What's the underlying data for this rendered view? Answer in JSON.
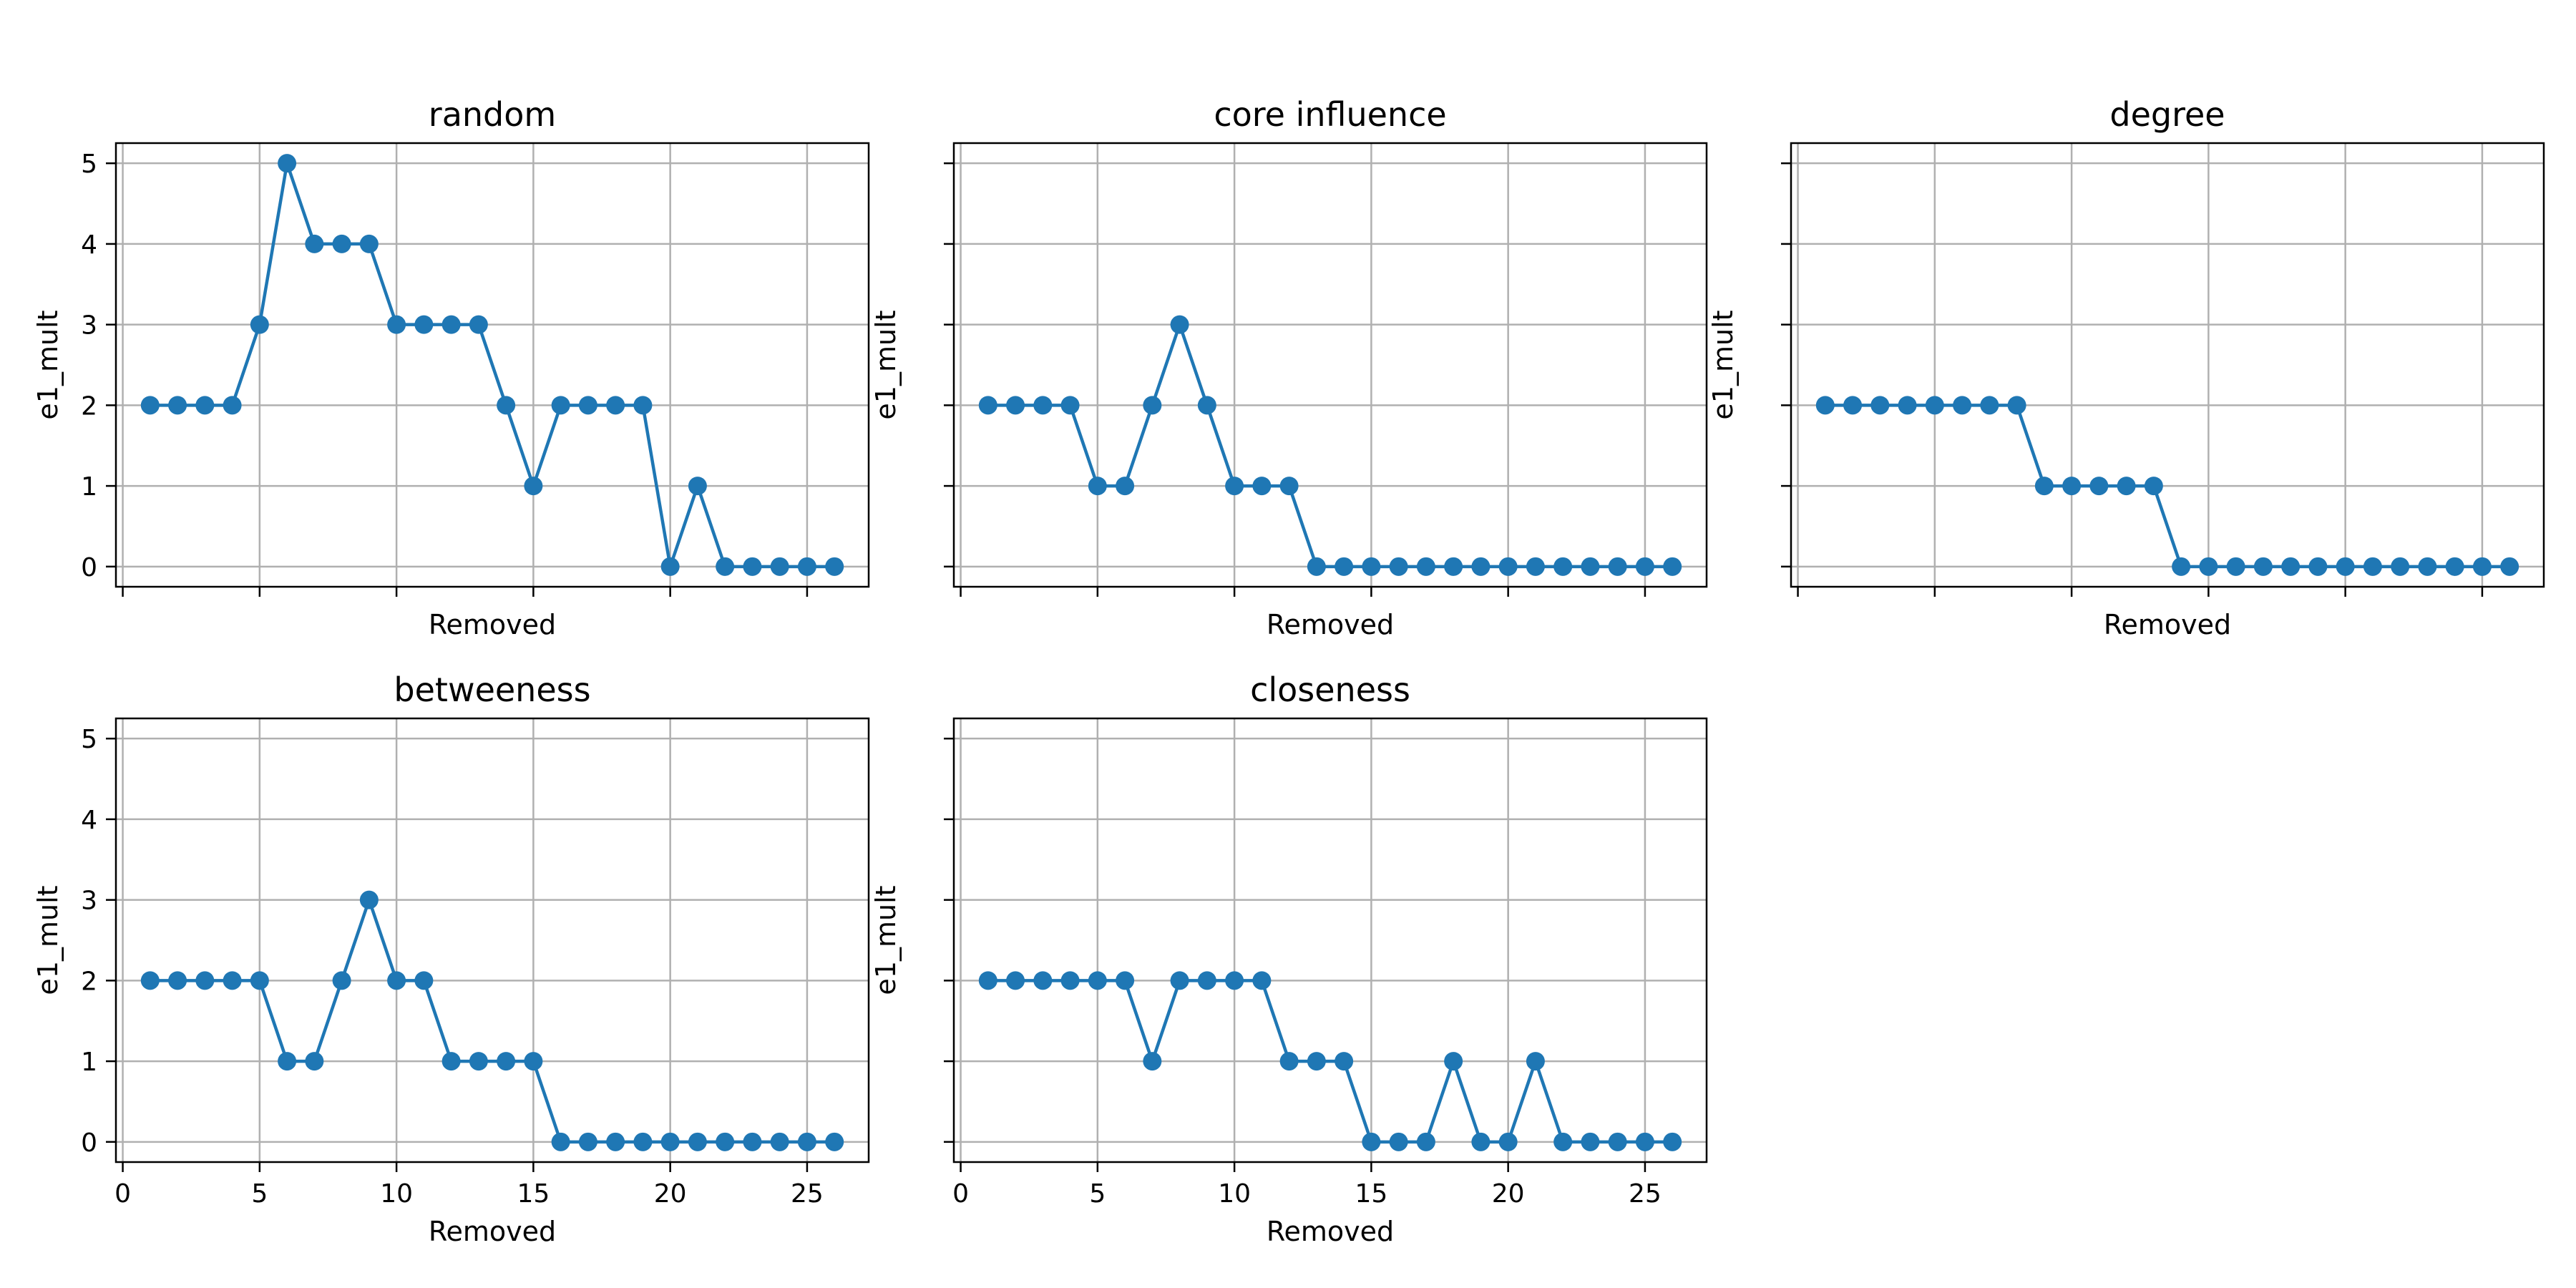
{
  "chart_data": [
    {
      "type": "line",
      "title": "random",
      "xlabel": "Removed",
      "ylabel": "e1_mult",
      "x": [
        1,
        2,
        3,
        4,
        5,
        6,
        7,
        8,
        9,
        10,
        11,
        12,
        13,
        14,
        15,
        16,
        17,
        18,
        19,
        20,
        21,
        22,
        23,
        24,
        25,
        26
      ],
      "values": [
        2,
        2,
        2,
        2,
        3,
        5,
        4,
        4,
        4,
        3,
        3,
        3,
        3,
        2,
        1,
        2,
        2,
        2,
        2,
        0,
        1,
        0,
        0,
        0,
        0,
        0
      ],
      "xlim": [
        -0.25,
        27.25
      ],
      "ylim": [
        -0.25,
        5.25
      ],
      "xticks": [
        0,
        5,
        10,
        15,
        20,
        25
      ],
      "yticks": [
        0,
        1,
        2,
        3,
        4,
        5
      ],
      "show_xticklabels": false,
      "show_yticklabels": true,
      "grid": true,
      "color": "#1f77b4",
      "marker": "circle"
    },
    {
      "type": "line",
      "title": "core influence",
      "xlabel": "Removed",
      "ylabel": "e1_mult",
      "x": [
        1,
        2,
        3,
        4,
        5,
        6,
        7,
        8,
        9,
        10,
        11,
        12,
        13,
        14,
        15,
        16,
        17,
        18,
        19,
        20,
        21,
        22,
        23,
        24,
        25,
        26
      ],
      "values": [
        2,
        2,
        2,
        2,
        1,
        1,
        2,
        3,
        2,
        1,
        1,
        1,
        0,
        0,
        0,
        0,
        0,
        0,
        0,
        0,
        0,
        0,
        0,
        0,
        0,
        0
      ],
      "xlim": [
        -0.25,
        27.25
      ],
      "ylim": [
        -0.25,
        5.25
      ],
      "xticks": [
        0,
        5,
        10,
        15,
        20,
        25
      ],
      "yticks": [
        0,
        1,
        2,
        3,
        4,
        5
      ],
      "show_xticklabels": false,
      "show_yticklabels": false,
      "grid": true,
      "color": "#1f77b4",
      "marker": "circle"
    },
    {
      "type": "line",
      "title": "degree",
      "xlabel": "Removed",
      "ylabel": "e1_mult",
      "x": [
        1,
        2,
        3,
        4,
        5,
        6,
        7,
        8,
        9,
        10,
        11,
        12,
        13,
        14,
        15,
        16,
        17,
        18,
        19,
        20,
        21,
        22,
        23,
        24,
        25,
        26
      ],
      "values": [
        2,
        2,
        2,
        2,
        2,
        2,
        2,
        2,
        1,
        1,
        1,
        1,
        1,
        0,
        0,
        0,
        0,
        0,
        0,
        0,
        0,
        0,
        0,
        0,
        0,
        0
      ],
      "xlim": [
        -0.25,
        27.25
      ],
      "ylim": [
        -0.25,
        5.25
      ],
      "xticks": [
        0,
        5,
        10,
        15,
        20,
        25
      ],
      "yticks": [
        0,
        1,
        2,
        3,
        4,
        5
      ],
      "show_xticklabels": false,
      "show_yticklabels": false,
      "grid": true,
      "color": "#1f77b4",
      "marker": "circle"
    },
    {
      "type": "line",
      "title": "betweeness",
      "xlabel": "Removed",
      "ylabel": "e1_mult",
      "x": [
        1,
        2,
        3,
        4,
        5,
        6,
        7,
        8,
        9,
        10,
        11,
        12,
        13,
        14,
        15,
        16,
        17,
        18,
        19,
        20,
        21,
        22,
        23,
        24,
        25,
        26
      ],
      "values": [
        2,
        2,
        2,
        2,
        2,
        1,
        1,
        2,
        3,
        2,
        2,
        1,
        1,
        1,
        1,
        0,
        0,
        0,
        0,
        0,
        0,
        0,
        0,
        0,
        0,
        0
      ],
      "xlim": [
        -0.25,
        27.25
      ],
      "ylim": [
        -0.25,
        5.25
      ],
      "xticks": [
        0,
        5,
        10,
        15,
        20,
        25
      ],
      "yticks": [
        0,
        1,
        2,
        3,
        4,
        5
      ],
      "show_xticklabels": true,
      "show_yticklabels": true,
      "grid": true,
      "color": "#1f77b4",
      "marker": "circle"
    },
    {
      "type": "line",
      "title": "closeness",
      "xlabel": "Removed",
      "ylabel": "e1_mult",
      "x": [
        1,
        2,
        3,
        4,
        5,
        6,
        7,
        8,
        9,
        10,
        11,
        12,
        13,
        14,
        15,
        16,
        17,
        18,
        19,
        20,
        21,
        22,
        23,
        24,
        25,
        26
      ],
      "values": [
        2,
        2,
        2,
        2,
        2,
        2,
        1,
        2,
        2,
        2,
        2,
        1,
        1,
        1,
        0,
        0,
        0,
        1,
        0,
        0,
        1,
        0,
        0,
        0,
        0,
        0
      ],
      "xlim": [
        -0.25,
        27.25
      ],
      "ylim": [
        -0.25,
        5.25
      ],
      "xticks": [
        0,
        5,
        10,
        15,
        20,
        25
      ],
      "yticks": [
        0,
        1,
        2,
        3,
        4,
        5
      ],
      "show_xticklabels": true,
      "show_yticklabels": false,
      "grid": true,
      "color": "#1f77b4",
      "marker": "circle"
    }
  ]
}
